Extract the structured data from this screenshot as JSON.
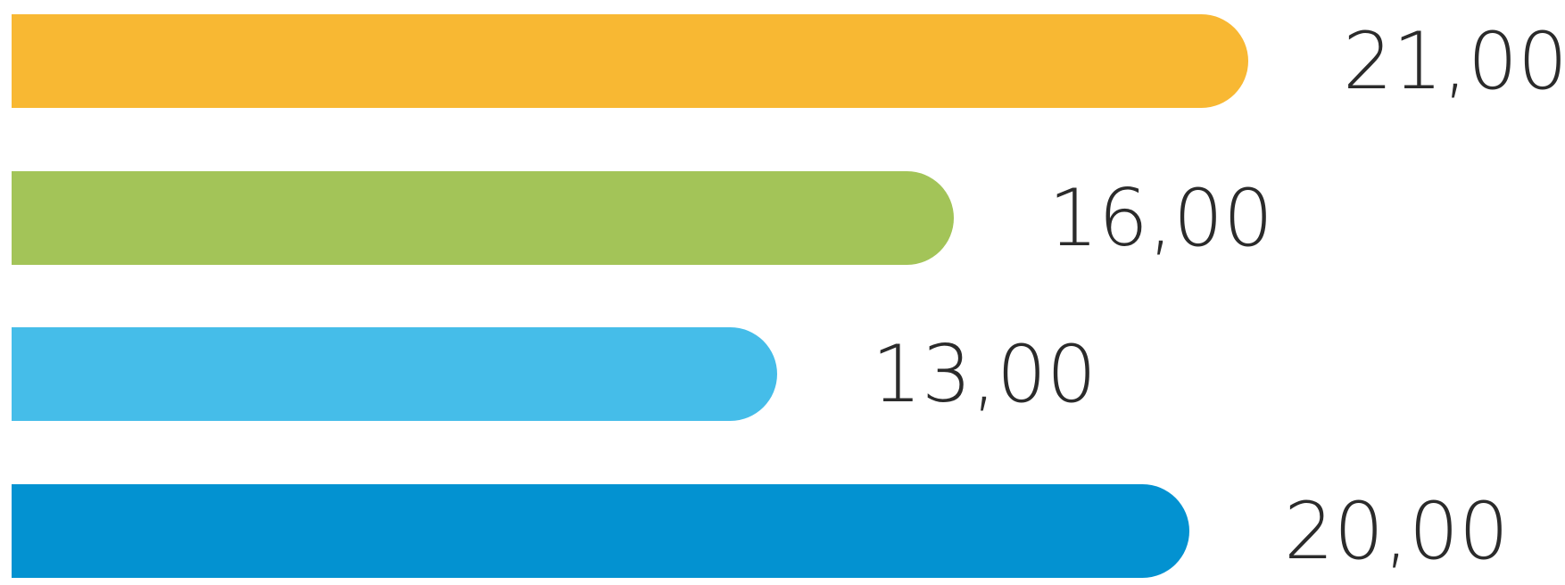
{
  "chart_data": {
    "type": "bar",
    "orientation": "horizontal",
    "values": [
      21,
      16,
      13,
      20
    ],
    "value_labels": [
      "21,00",
      "16,00",
      "13,00",
      "20,00"
    ],
    "colors": [
      "#f8b833",
      "#a3c458",
      "#45bde9",
      "#0392d1"
    ]
  }
}
